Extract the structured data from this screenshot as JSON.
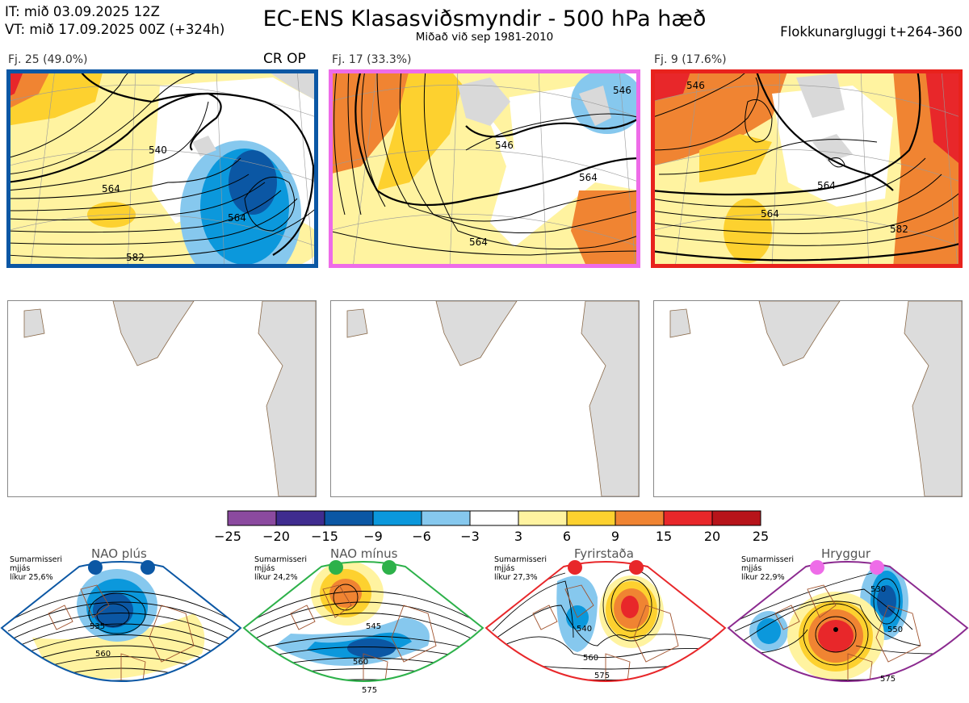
{
  "header": {
    "init_time": "IT: mið 03.09.2025 12Z",
    "valid_time": "VT: mið 17.09.2025 00Z  (+324h)",
    "title": "EC-ENS Klasasviðsmyndir - 500 hPa hæð",
    "subtitle": "Miðað við sep 1981-2010",
    "window": "Flokkunargluggi t+264-360"
  },
  "clusters": [
    {
      "label": "Fj. 25 (49.0%)",
      "frame_color": "#0b57a4",
      "contours": [
        "540",
        "564",
        "564",
        "582"
      ]
    },
    {
      "label": "Fj. 17 (33.3%)",
      "frame_color": "#ee6ce8",
      "contours": [
        "546",
        "546",
        "564",
        "564"
      ]
    },
    {
      "label": "Fj. 9 (17.6%)",
      "frame_color": "#e8221d",
      "contours": [
        "546",
        "564",
        "564",
        "582"
      ]
    }
  ],
  "cr_op_label": "CR OP",
  "colorbar": {
    "colors": [
      "#8b4a9f",
      "#3f2c8f",
      "#0b57a4",
      "#0b98dc",
      "#86c8ee",
      "#ffffff",
      "#fff3a0",
      "#fdd12f",
      "#f08432",
      "#e8272a",
      "#b7141a"
    ],
    "ticks": [
      "−25",
      "−20",
      "−15",
      "−9",
      "−6",
      "−3",
      "3",
      "6",
      "9",
      "15",
      "20",
      "25"
    ]
  },
  "regimes": [
    {
      "name": "NAO plús",
      "stat_lines": [
        "Sumarmisseri",
        "mjjás",
        "líkur 25,6%"
      ],
      "dot_color": "#0b57a4",
      "frame_color": "#0b57a4",
      "contours": [
        "535",
        "560"
      ]
    },
    {
      "name": "NAO mínus",
      "stat_lines": [
        "Sumarmisseri",
        "mjjás",
        "líkur 24,2%"
      ],
      "dot_color": "#2db14a",
      "frame_color": "#2db14a",
      "contours": [
        "545",
        "560",
        "575"
      ]
    },
    {
      "name": "Fyrirstaða",
      "stat_lines": [
        "Sumarmisseri",
        "mjjás",
        "líkur 27,3%"
      ],
      "dot_color": "#e8272a",
      "frame_color": "#e8272a",
      "contours": [
        "540",
        "560",
        "575"
      ]
    },
    {
      "name": "Hryggur",
      "stat_lines": [
        "Sumarmisseri",
        "mjjás",
        "líkur 22,9%"
      ],
      "dot_color": "#ee6ce8",
      "frame_color": "#8b2a8f",
      "contours": [
        "530",
        "550",
        "575"
      ]
    }
  ]
}
